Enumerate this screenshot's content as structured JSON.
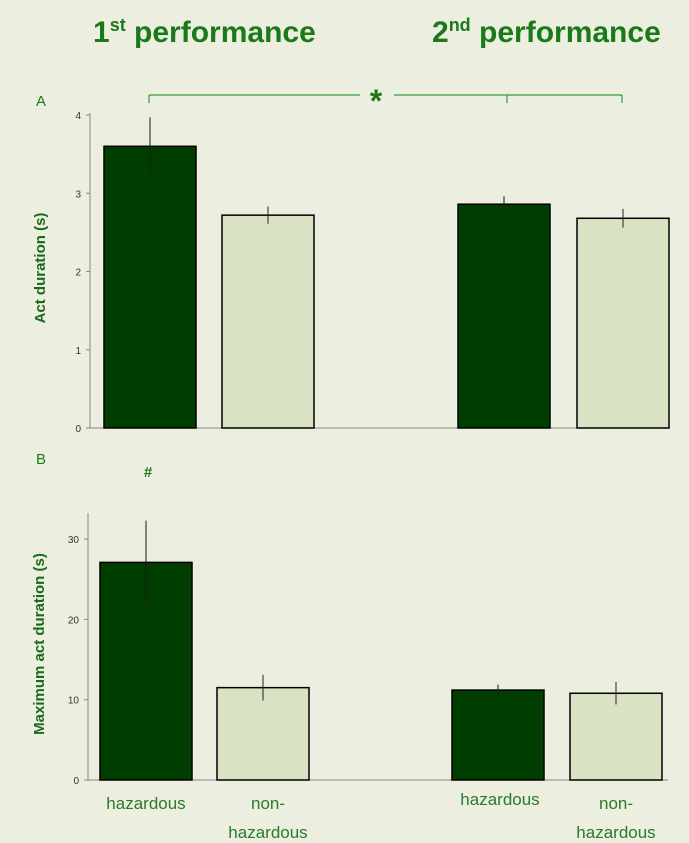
{
  "headers": {
    "first": {
      "ordinal": "1",
      "suffix": "st",
      "word": " performance"
    },
    "second": {
      "ordinal": "2",
      "suffix": "nd",
      "word": " performance"
    }
  },
  "colors": {
    "background": "#eceedf",
    "hazardous": "#003d00",
    "non_hazardous": "#d9e3c3",
    "text_green": "#1a7a1a",
    "axis": "#888888"
  },
  "chart_data": [
    {
      "type": "bar",
      "panel_label": "A",
      "ylabel": "Act duration (s)",
      "ylim": [
        0,
        4
      ],
      "yticks": [
        0,
        1,
        2,
        3,
        4
      ],
      "groups": [
        "1st performance",
        "2nd performance"
      ],
      "categories": [
        "hazardous",
        "non-hazardous"
      ],
      "series": [
        {
          "name": "1st performance",
          "values": [
            3.6,
            2.72
          ],
          "errors": [
            0.37,
            0.11
          ]
        },
        {
          "name": "2nd performance",
          "values": [
            2.86,
            2.68
          ],
          "errors": [
            0.1,
            0.12
          ]
        }
      ],
      "significance": {
        "symbol": "*"
      },
      "grid": false
    },
    {
      "type": "bar",
      "panel_label": "B",
      "ylabel": "Maximum act duration (s)",
      "ylim": [
        0,
        33
      ],
      "yticks": [
        0,
        10,
        20,
        30
      ],
      "groups": [
        "1st performance",
        "2nd performance"
      ],
      "categories": [
        "hazardous",
        "non-hazardous"
      ],
      "category_labels": {
        "hazardous": "hazardous",
        "non_hazardous_line1": "non-",
        "non_hazardous_line2": "hazardous"
      },
      "series": [
        {
          "name": "1st performance",
          "values": [
            27.1,
            11.5
          ],
          "errors": [
            5.2,
            1.6
          ]
        },
        {
          "name": "2nd performance",
          "values": [
            11.2,
            10.8
          ],
          "errors": [
            0.7,
            1.4
          ]
        }
      ],
      "annotation": {
        "symbol": "#"
      },
      "grid": false
    }
  ]
}
